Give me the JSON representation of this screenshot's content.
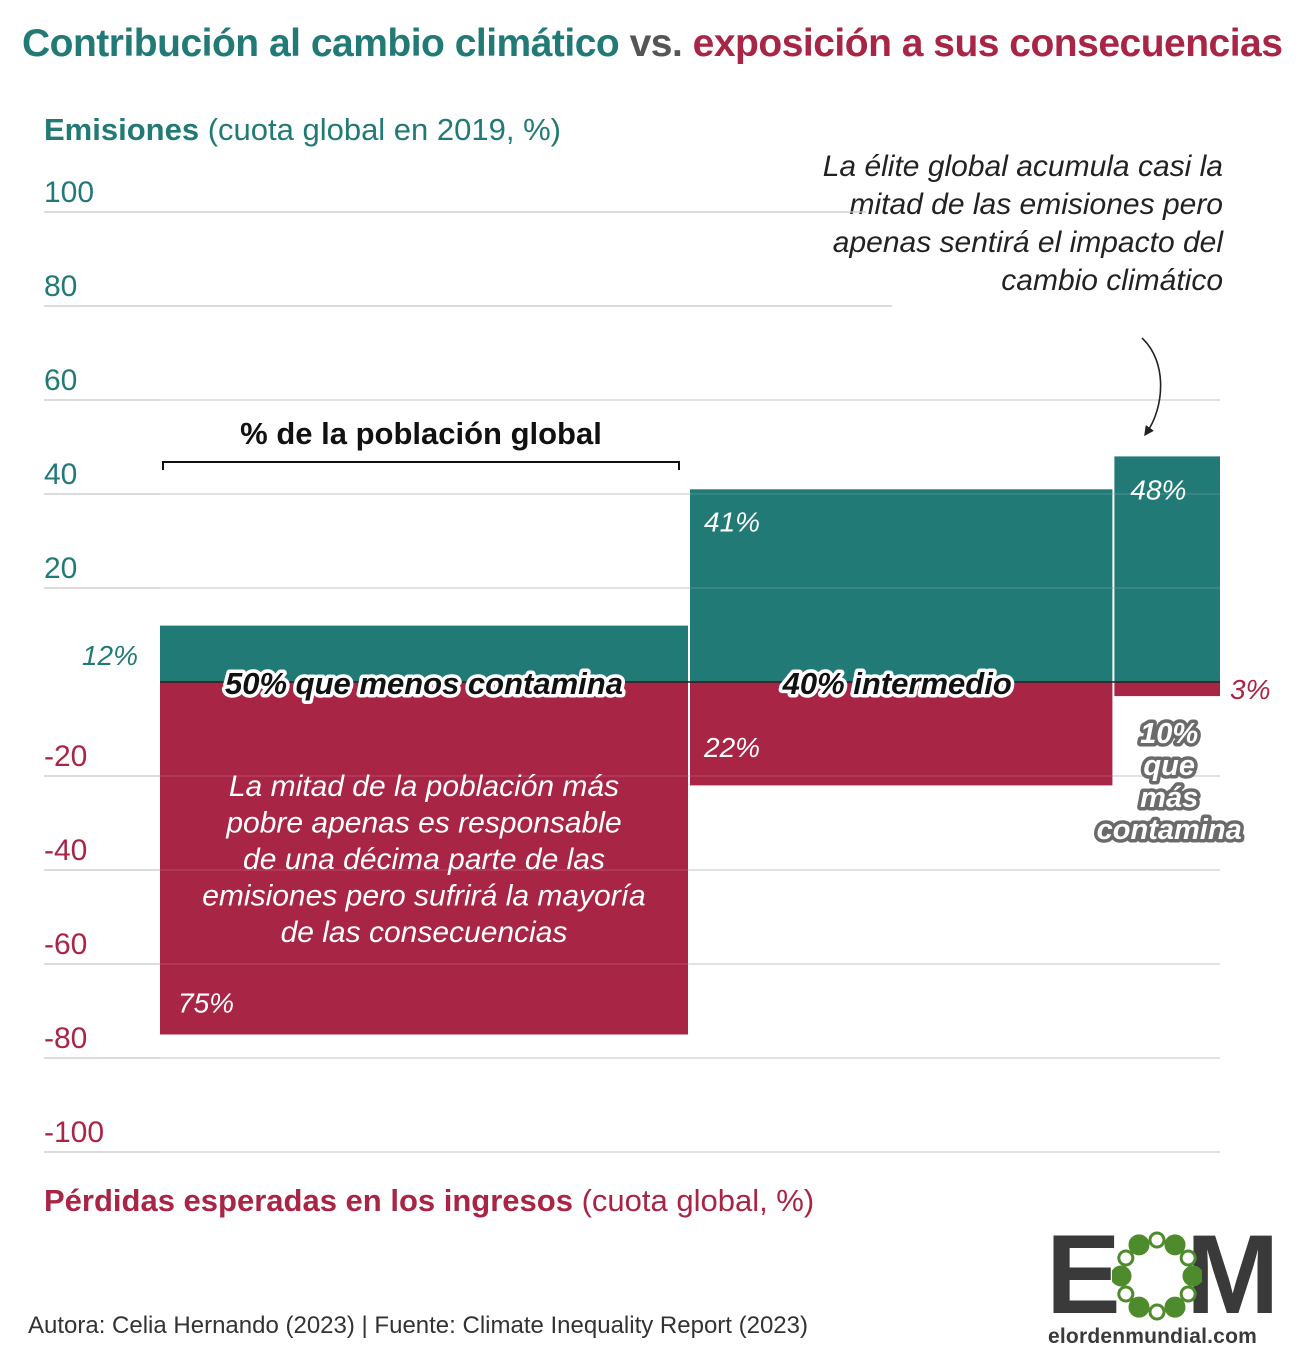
{
  "title": {
    "part1": "Contribución al cambio climático",
    "part2": "vs.",
    "part3": "exposición a sus consecuencias"
  },
  "axis_top_label": {
    "bold": "Emisiones",
    "rest": "(cuota global en 2019, %)"
  },
  "axis_bottom_label": {
    "bold": "Pérdidas esperadas en los ingresos",
    "rest": "(cuota global, %)"
  },
  "annotation_right": "La élite global acumula casi la mitad de las emisiones pero apenas sentirá el impacto del cambio climático",
  "annotation_left": "La mitad de la población más pobre apenas es responsable de una décima parte de las emisiones pero sufrirá la mayoría de las consecuencias",
  "bracket_label": "% de la población global",
  "source": "Autora: Celia Hernando  (2023) | Fuente: Climate Inequality Report  (2023)",
  "logo": {
    "word": "EOM",
    "url": "elordenmundial.com"
  },
  "colors": {
    "emissions": "#227a76",
    "losses": "#a92545",
    "text": "#222222",
    "grid": "#c8c8c8"
  },
  "chart_data": {
    "type": "bar",
    "ylim": [
      -100,
      100
    ],
    "yticks": [
      100,
      80,
      60,
      40,
      20,
      -20,
      -40,
      -60,
      -80,
      -100
    ],
    "grid": true,
    "groups": [
      {
        "name": "50% que menos contamina",
        "population_share": 50,
        "emissions": 12,
        "losses": 75,
        "emissions_label": "12%",
        "losses_label": "75%"
      },
      {
        "name": "40% intermedio",
        "population_share": 40,
        "emissions": 41,
        "losses": 22,
        "emissions_label": "41%",
        "losses_label": "22%"
      },
      {
        "name": "10% que más contamina",
        "population_share": 10,
        "emissions": 48,
        "losses": 3,
        "emissions_label": "48%",
        "losses_label": "3%"
      }
    ]
  }
}
